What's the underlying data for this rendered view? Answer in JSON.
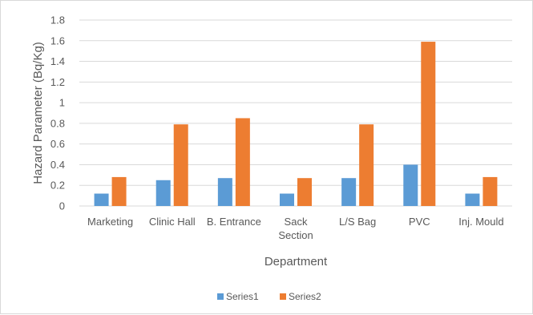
{
  "chart_data": {
    "type": "bar",
    "title": "",
    "xlabel": "Department",
    "ylabel": "Hazard Parameter (Bq/Kg)",
    "categories": [
      [
        "Marketing"
      ],
      [
        "Clinic Hall"
      ],
      [
        "B. Entrance"
      ],
      [
        "Sack",
        "Section"
      ],
      [
        "L/S Bag"
      ],
      [
        "PVC"
      ],
      [
        "Inj. Mould"
      ]
    ],
    "series": [
      {
        "name": "Series1",
        "color": "#5b9bd5",
        "values": [
          0.12,
          0.25,
          0.27,
          0.12,
          0.27,
          0.4,
          0.12
        ]
      },
      {
        "name": "Series2",
        "color": "#ed7d31",
        "values": [
          0.28,
          0.79,
          0.85,
          0.27,
          0.79,
          1.59,
          0.28
        ]
      }
    ],
    "ylim": [
      0,
      1.8
    ],
    "yticks": [
      "0",
      "0.2",
      "0.4",
      "0.6",
      "0.8",
      "1",
      "1.2",
      "1.4",
      "1.6",
      "1.8"
    ],
    "grid": true,
    "legend_position": "bottom",
    "colors": {
      "gridline": "#d9d9d9",
      "text": "#595959"
    }
  }
}
